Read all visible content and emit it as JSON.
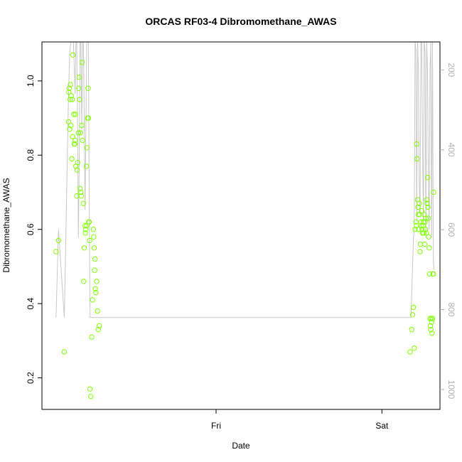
{
  "chart_data": {
    "type": "scatter",
    "title": "ORCAS RF03-4 Dibromomethane_AWAS",
    "xlabel": "Date",
    "ylabel": "Dibromomethane_AWAS",
    "ylim": [
      0.115,
      1.105
    ],
    "y_ticks": [
      0.2,
      0.4,
      0.6,
      0.8,
      1.0
    ],
    "y_tick_labels": [
      "0.2",
      "0.4",
      "0.6",
      "0.8",
      "1.0"
    ],
    "x_unit": "hours since Thu 00:00",
    "xlim": [
      13.5,
      37.5
    ],
    "x_ticks": [
      24,
      34
    ],
    "x_tick_labels": [
      "Fri",
      "Sat"
    ],
    "y2_ticks": [
      200,
      400,
      600,
      800,
      1000
    ],
    "y2_tick_labels": [
      "200",
      "400",
      "600",
      "800",
      "1000"
    ],
    "y2lim": [
      1050,
      130
    ],
    "colors": {
      "points": "#7fff00",
      "line": "#c8c8c8",
      "box": "#000000",
      "right_axis": "#b0b0b0"
    },
    "series": [
      {
        "kind": "points",
        "x": [
          14.35,
          14.5,
          14.85,
          15.1,
          15.12,
          15.15,
          15.17,
          15.2,
          15.22,
          15.25,
          15.27,
          15.3,
          15.32,
          15.35,
          15.37,
          15.42,
          15.45,
          15.48,
          15.5,
          15.52,
          15.55,
          15.6,
          15.62,
          15.65,
          15.7,
          15.72,
          15.75,
          15.78,
          15.8,
          15.82,
          15.85,
          15.87,
          15.9,
          15.92,
          15.95,
          16.0,
          16.02,
          16.05,
          16.1,
          16.12,
          16.15,
          16.18,
          16.2,
          16.22,
          16.25,
          16.28,
          16.3,
          16.32,
          16.35,
          16.38,
          16.4,
          16.45,
          16.5,
          16.55,
          16.6,
          16.62,
          16.65,
          16.68,
          16.7,
          16.72,
          16.75,
          16.8,
          16.85,
          16.9,
          16.95,
          35.7,
          35.8,
          35.85,
          35.9,
          35.95,
          36.0,
          36.05,
          36.08,
          36.1,
          36.12,
          36.15,
          36.18,
          36.2,
          36.22,
          36.25,
          36.28,
          36.3,
          36.32,
          36.35,
          36.38,
          36.4,
          36.42,
          36.45,
          36.48,
          36.5,
          36.52,
          36.55,
          36.58,
          36.6,
          36.62,
          36.65,
          36.68,
          36.7,
          36.72,
          36.75,
          36.78,
          36.8,
          36.82,
          36.85,
          36.88,
          36.9,
          36.92,
          36.95,
          36.98,
          37.0,
          37.02,
          37.05,
          37.08,
          37.1,
          37.12
        ],
        "y": [
          0.54,
          0.57,
          0.27,
          0.89,
          0.97,
          0.98,
          0.87,
          0.95,
          0.99,
          0.88,
          0.96,
          0.79,
          0.95,
          0.85,
          1.07,
          0.91,
          0.83,
          0.83,
          0.84,
          0.91,
          0.77,
          0.69,
          0.76,
          0.78,
          0.86,
          0.98,
          1.01,
          0.95,
          0.71,
          0.86,
          0.7,
          0.69,
          0.88,
          1.05,
          0.84,
          0.67,
          0.46,
          0.55,
          0.61,
          0.59,
          0.6,
          0.77,
          0.61,
          0.82,
          0.9,
          0.98,
          0.9,
          0.62,
          0.62,
          0.57,
          0.17,
          0.15,
          0.31,
          0.41,
          0.6,
          0.58,
          0.55,
          0.49,
          0.52,
          0.44,
          0.43,
          0.46,
          0.38,
          0.33,
          0.34,
          0.27,
          0.33,
          0.37,
          0.39,
          0.28,
          0.6,
          0.62,
          0.61,
          0.83,
          0.79,
          0.68,
          0.66,
          0.64,
          0.6,
          0.67,
          0.64,
          0.54,
          0.56,
          0.62,
          0.61,
          0.65,
          0.6,
          0.59,
          0.61,
          0.62,
          0.59,
          0.64,
          0.56,
          0.62,
          0.6,
          0.63,
          0.59,
          0.68,
          0.67,
          0.74,
          0.66,
          0.63,
          0.58,
          0.55,
          0.48,
          0.36,
          0.34,
          0.33,
          0.36,
          0.35,
          0.32,
          0.36,
          0.48,
          0.48,
          0.7
        ]
      },
      {
        "kind": "line",
        "x": [
          14.35,
          14.5,
          14.85,
          15.1,
          15.18,
          15.25,
          15.35,
          15.4,
          15.5,
          15.55,
          15.6,
          15.65,
          15.7,
          15.75,
          15.8,
          15.85,
          15.9,
          15.95,
          16.0,
          16.05,
          16.1,
          16.2,
          16.3,
          16.35,
          16.4,
          16.45,
          16.5,
          35.75,
          35.9,
          35.95,
          36.0,
          36.05,
          36.1,
          36.15,
          36.2,
          36.25,
          36.3,
          36.35,
          36.4,
          36.45,
          36.5,
          36.55,
          36.6,
          36.65,
          36.7,
          36.75,
          36.8,
          36.85,
          36.9,
          36.95,
          37.0,
          37.05,
          37.1,
          37.15
        ],
        "y": [
          820,
          600,
          820,
          270,
          150,
          80,
          60,
          100,
          260,
          60,
          40,
          350,
          620,
          420,
          70,
          100,
          350,
          60,
          90,
          320,
          550,
          40,
          100,
          520,
          820,
          820,
          820,
          820,
          620,
          600,
          80,
          150,
          580,
          60,
          200,
          480,
          560,
          90,
          60,
          400,
          580,
          70,
          150,
          620,
          90,
          200,
          470,
          600,
          200,
          80,
          620,
          80,
          680,
          700
        ]
      }
    ]
  }
}
